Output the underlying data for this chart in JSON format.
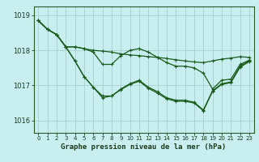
{
  "title": "Graphe pression niveau de la mer (hPa)",
  "bg_color": "#c8eef0",
  "grid_color": "#a8d0d0",
  "line_color": "#1a5c1a",
  "ylim": [
    1015.65,
    1019.25
  ],
  "yticks": [
    1016,
    1017,
    1018,
    1019
  ],
  "xlim": [
    -0.5,
    23.5
  ],
  "xticks": [
    0,
    1,
    2,
    3,
    4,
    5,
    6,
    7,
    8,
    9,
    10,
    11,
    12,
    13,
    14,
    15,
    16,
    17,
    18,
    19,
    20,
    21,
    22,
    23
  ],
  "series": [
    [
      1018.85,
      1018.6,
      1018.45,
      1018.1,
      1018.1,
      1018.05,
      1018.0,
      1017.98,
      1017.95,
      1017.9,
      1017.87,
      1017.85,
      1017.82,
      1017.8,
      1017.77,
      1017.73,
      1017.7,
      1017.67,
      1017.65,
      1017.7,
      1017.75,
      1017.78,
      1017.82,
      1017.8
    ],
    [
      1018.85,
      1018.6,
      1018.45,
      1018.1,
      1018.1,
      1018.05,
      1017.95,
      1017.6,
      1017.6,
      1017.85,
      1018.0,
      1018.05,
      1017.95,
      1017.8,
      1017.65,
      1017.55,
      1017.55,
      1017.5,
      1017.35,
      1016.9,
      1017.15,
      1017.18,
      1017.6,
      1017.72
    ],
    [
      1018.85,
      1018.6,
      1018.45,
      1018.1,
      1017.7,
      1017.25,
      1016.95,
      1016.65,
      1016.7,
      1016.9,
      1017.05,
      1017.15,
      1016.95,
      1016.82,
      1016.65,
      1016.58,
      1016.58,
      1016.52,
      1016.3,
      1016.85,
      1017.05,
      1017.1,
      1017.55,
      1017.7
    ],
    [
      1018.85,
      1018.6,
      1018.45,
      1018.1,
      1017.7,
      1017.25,
      1016.95,
      1016.7,
      1016.7,
      1016.88,
      1017.03,
      1017.12,
      1016.92,
      1016.78,
      1016.62,
      1016.55,
      1016.55,
      1016.5,
      1016.28,
      1016.83,
      1017.03,
      1017.08,
      1017.52,
      1017.68
    ]
  ]
}
